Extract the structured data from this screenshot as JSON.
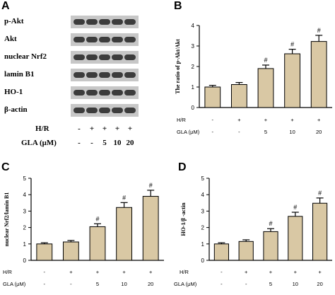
{
  "panels": {
    "A": "A",
    "B": "B",
    "C": "C",
    "D": "D"
  },
  "blot": {
    "proteins": [
      "p-Akt",
      "Akt",
      "nuclear Nrf2",
      "lamin B1",
      "HO-1",
      "β-actin"
    ],
    "treatment_rows": [
      {
        "label": "H/R",
        "values": [
          "-",
          "+",
          "+",
          "+",
          "+"
        ]
      },
      {
        "label": "GLA (μM)",
        "values": [
          "-",
          "-",
          "5",
          "10",
          "20"
        ]
      }
    ]
  },
  "colors": {
    "bar_fill": "#d9c8a4",
    "bar_stroke": "#000000",
    "blot_background": "#c7c7c7",
    "band": "#3c3c3c"
  },
  "chart_data": [
    {
      "panel": "B",
      "type": "bar",
      "categories": [
        "1",
        "2",
        "3",
        "4",
        "5"
      ],
      "values": [
        1.0,
        1.12,
        1.9,
        2.62,
        3.22
      ],
      "errors": [
        0.08,
        0.1,
        0.17,
        0.22,
        0.3
      ],
      "significance": [
        "",
        "",
        "#",
        "#",
        "#"
      ],
      "ylabel": "The ratio of p-Akt/Akt",
      "ylim": [
        0,
        4
      ],
      "yticks": [
        "0",
        "1",
        "2",
        "3",
        "4"
      ],
      "x_rows": [
        {
          "label": "H/R",
          "values": [
            "-",
            "+",
            "+",
            "+",
            "+"
          ]
        },
        {
          "label": "GLA (μM)",
          "values": [
            "-",
            "-",
            "5",
            "10",
            "20"
          ]
        }
      ]
    },
    {
      "panel": "C",
      "type": "bar",
      "categories": [
        "1",
        "2",
        "3",
        "4",
        "5"
      ],
      "values": [
        1.0,
        1.12,
        2.05,
        3.22,
        3.9
      ],
      "errors": [
        0.07,
        0.09,
        0.18,
        0.3,
        0.37
      ],
      "significance": [
        "",
        "",
        "#",
        "#",
        "#"
      ],
      "ylabel": "nuclear Nrf2/lamin B1",
      "ylim": [
        0,
        5
      ],
      "yticks": [
        "0",
        "1",
        "2",
        "3",
        "4",
        "5"
      ],
      "x_rows": [
        {
          "label": "H/R",
          "values": [
            "-",
            "+",
            "+",
            "+",
            "+"
          ]
        },
        {
          "label": "GLA (μM)",
          "values": [
            "-",
            "-",
            "5",
            "10",
            "20"
          ]
        }
      ]
    },
    {
      "panel": "D",
      "type": "bar",
      "categories": [
        "1",
        "2",
        "3",
        "4",
        "5"
      ],
      "values": [
        1.0,
        1.15,
        1.75,
        2.68,
        3.48
      ],
      "errors": [
        0.07,
        0.1,
        0.18,
        0.25,
        0.32
      ],
      "significance": [
        "",
        "",
        "#",
        "#",
        "#"
      ],
      "ylabel": "HO-1/β -actin",
      "ylim": [
        0,
        5
      ],
      "yticks": [
        "0",
        "1",
        "2",
        "3",
        "4",
        "5"
      ],
      "x_rows": [
        {
          "label": "H/R",
          "values": [
            "-",
            "+",
            "+",
            "+",
            "+"
          ]
        },
        {
          "label": "GLA (μM)",
          "values": [
            "-",
            "-",
            "5",
            "10",
            "20"
          ]
        }
      ]
    }
  ]
}
